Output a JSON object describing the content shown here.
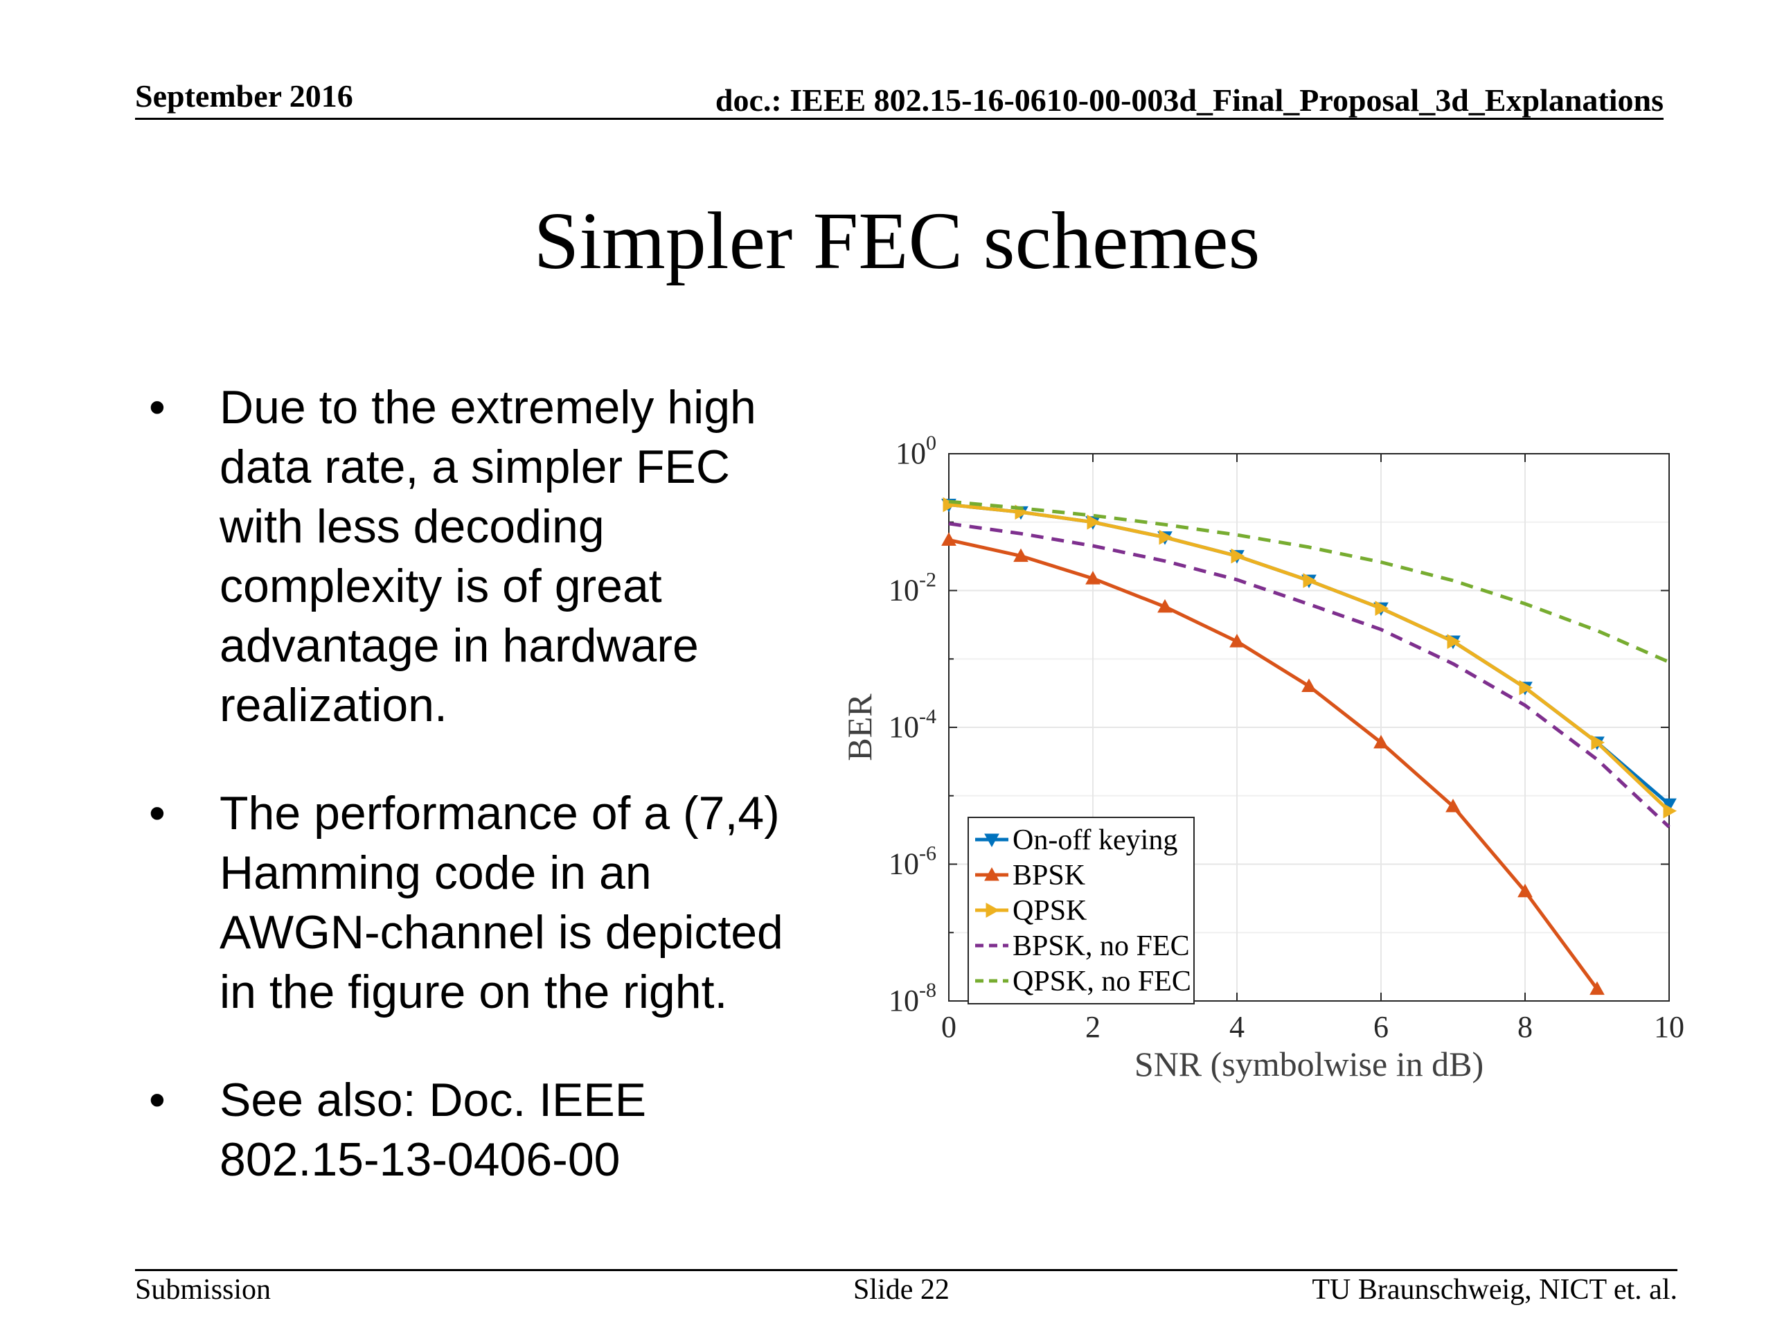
{
  "header": {
    "date": "September 2016",
    "doc": "doc.: IEEE 802.15-16-0610-00-003d_Final_Proposal_3d_Explanations"
  },
  "title": "Simpler FEC schemes",
  "bullets": [
    {
      "symbol": "•",
      "lines": [
        "Due to the extremely high",
        "data rate, a simpler FEC",
        "with less decoding",
        "complexity is of great",
        "advantage in hardware",
        "realization."
      ]
    },
    {
      "symbol": "•",
      "lines": [
        "The performance of a (7,4)",
        "Hamming code in an",
        "AWGN-channel is depicted",
        "in the figure on the right."
      ]
    },
    {
      "symbol": "•",
      "lines": [
        "See also: Doc. IEEE",
        "802.15-13-0406-00"
      ]
    }
  ],
  "footer": {
    "left": "Submission",
    "center": "Slide 22",
    "right": "TU Braunschweig, NICT et. al."
  },
  "chart_data": {
    "type": "line",
    "xlabel": "SNR (symbolwise in dB)",
    "ylabel": "BER",
    "xlim": [
      0,
      10
    ],
    "ylim_log10": [
      -8,
      0
    ],
    "y_scale": "log",
    "x_ticks": [
      "0",
      "2",
      "4",
      "6",
      "8",
      "10"
    ],
    "y_ticks": [
      {
        "base": "10",
        "exp": "0"
      },
      {
        "base": "10",
        "exp": "-2"
      },
      {
        "base": "10",
        "exp": "-4"
      },
      {
        "base": "10",
        "exp": "-6"
      },
      {
        "base": "10",
        "exp": "-8"
      }
    ],
    "grid": true,
    "legend_position": "bottom-left",
    "x": [
      0,
      1,
      2,
      3,
      4,
      5,
      6,
      7,
      8,
      9,
      10
    ],
    "series": [
      {
        "name": "On-off keying",
        "color": "#0072BD",
        "dash": "solid",
        "marker": "triangle-down",
        "values": [
          0.18,
          0.14,
          0.1,
          0.06,
          0.032,
          0.014,
          0.0055,
          0.0018,
          0.00038,
          6e-05,
          7.5e-06
        ]
      },
      {
        "name": "BPSK",
        "color": "#D95319",
        "dash": "solid",
        "marker": "triangle-up",
        "values": [
          0.055,
          0.032,
          0.015,
          0.0058,
          0.0018,
          0.0004,
          6e-05,
          7e-06,
          4e-07,
          1.5e-08,
          null
        ]
      },
      {
        "name": "QPSK",
        "color": "#EDB120",
        "dash": "solid",
        "marker": "triangle-right",
        "values": [
          0.18,
          0.14,
          0.1,
          0.06,
          0.032,
          0.014,
          0.0055,
          0.0018,
          0.00038,
          6e-05,
          6e-06
        ]
      },
      {
        "name": "BPSK, no FEC",
        "color": "#7E2F8E",
        "dash": "dashed",
        "marker": "none",
        "values": [
          0.095,
          0.068,
          0.045,
          0.027,
          0.0144,
          0.0063,
          0.0027,
          0.00085,
          0.00021,
          3.4e-05,
          3.5e-06
        ]
      },
      {
        "name": "QPSK, no FEC",
        "color": "#77AC30",
        "dash": "dashed",
        "marker": "none",
        "values": [
          0.2,
          0.16,
          0.125,
          0.092,
          0.065,
          0.043,
          0.026,
          0.014,
          0.0064,
          0.0026,
          0.0009
        ]
      }
    ]
  }
}
